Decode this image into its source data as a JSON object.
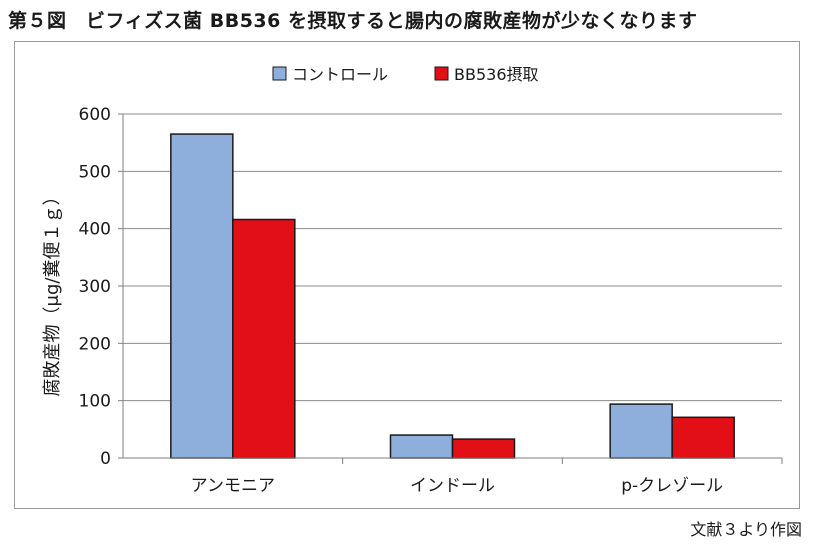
{
  "header": {
    "title": "第５図　ビフィズス菌 BB536 を摂取すると腸内の腐敗産物が少なくなります"
  },
  "footer": {
    "source": "文献３より作図"
  },
  "colors": {
    "control": "#8eaedb",
    "bb536": "#e20f17",
    "axis": "#7f7f7f",
    "grid": "#8c8c8c"
  },
  "chart_data": {
    "type": "bar",
    "categories": [
      "アンモニア",
      "インドール",
      "p-クレゾール"
    ],
    "series": [
      {
        "name": "コントロール",
        "values": [
          565,
          40,
          94
        ]
      },
      {
        "name": "BB536摂取",
        "values": [
          416,
          33,
          71
        ]
      }
    ],
    "ylabel": "腐敗産物（μg/糞便１ｇ）",
    "ylim": [
      0,
      600
    ],
    "yticks": [
      0,
      100,
      200,
      300,
      400,
      500,
      600
    ],
    "grid": true,
    "legend": "top"
  }
}
